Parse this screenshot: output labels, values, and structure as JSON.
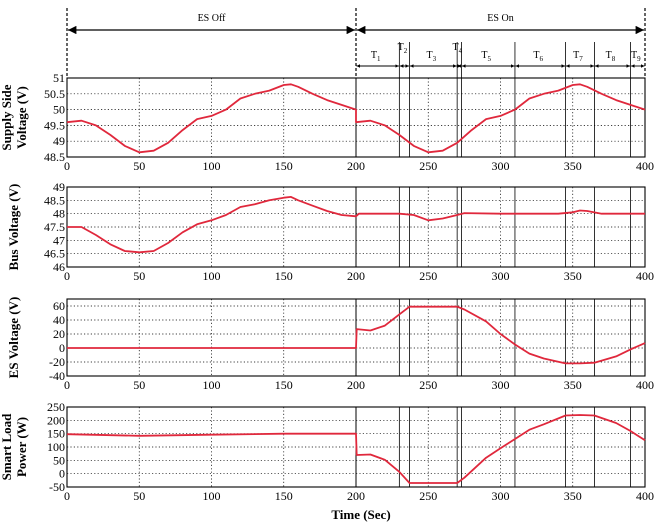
{
  "figure": {
    "xlabel": "Time (Sec)",
    "phase_labels": [
      "ES Off",
      "ES On"
    ],
    "intervals": [
      {
        "base": "T",
        "sub": "1"
      },
      {
        "base": "T",
        "sub": "2"
      },
      {
        "base": "T",
        "sub": "3"
      },
      {
        "base": "T",
        "sub": "4"
      },
      {
        "base": "T",
        "sub": "5"
      },
      {
        "base": "T",
        "sub": "6"
      },
      {
        "base": "T",
        "sub": "7"
      },
      {
        "base": "T",
        "sub": "8"
      },
      {
        "base": "T",
        "sub": "9"
      }
    ],
    "interval_bounds": [
      200,
      230,
      237,
      270,
      273,
      310,
      345,
      365,
      390,
      400
    ],
    "switch_time": 200,
    "line_color": "#e0283c"
  },
  "chart_data": [
    {
      "type": "line",
      "ylabel": [
        "Supply Side",
        "Voltage (V)"
      ],
      "xlim": [
        0,
        400
      ],
      "ylim": [
        48.5,
        51
      ],
      "yticks": [
        "48.5",
        "49",
        "49.5",
        "50",
        "50.5",
        "51"
      ],
      "xticks": [
        "0",
        "50",
        "100",
        "150",
        "200",
        "250",
        "300",
        "350",
        "400"
      ],
      "x": [
        0,
        10,
        20,
        30,
        40,
        50,
        60,
        70,
        80,
        90,
        100,
        110,
        120,
        130,
        140,
        150,
        155,
        160,
        170,
        180,
        190,
        200,
        200,
        210,
        220,
        230,
        240,
        250,
        260,
        270,
        280,
        290,
        300,
        310,
        320,
        330,
        340,
        350,
        355,
        360,
        370,
        380,
        390,
        400
      ],
      "y": [
        49.6,
        49.65,
        49.5,
        49.2,
        48.85,
        48.65,
        48.7,
        48.95,
        49.35,
        49.7,
        49.8,
        50.0,
        50.35,
        50.5,
        50.6,
        50.78,
        50.8,
        50.72,
        50.5,
        50.3,
        50.15,
        50.0,
        49.6,
        49.65,
        49.5,
        49.2,
        48.85,
        48.65,
        48.7,
        48.95,
        49.35,
        49.7,
        49.8,
        50.0,
        50.35,
        50.5,
        50.6,
        50.78,
        50.8,
        50.72,
        50.5,
        50.3,
        50.15,
        50.0
      ]
    },
    {
      "type": "line",
      "ylabel": [
        "Bus Voltage (V)"
      ],
      "xlim": [
        0,
        400
      ],
      "ylim": [
        46,
        49
      ],
      "yticks": [
        "46",
        "46.5",
        "47",
        "47.5",
        "48",
        "48.5",
        "49"
      ],
      "xticks": [
        "0",
        "50",
        "100",
        "150",
        "200",
        "250",
        "300",
        "350",
        "400"
      ],
      "x": [
        0,
        10,
        20,
        30,
        40,
        50,
        60,
        70,
        80,
        90,
        100,
        110,
        120,
        130,
        140,
        150,
        155,
        160,
        170,
        180,
        190,
        200,
        202,
        230,
        240,
        250,
        260,
        270,
        275,
        300,
        340,
        350,
        355,
        360,
        370,
        400
      ],
      "y": [
        47.5,
        47.5,
        47.2,
        46.85,
        46.6,
        46.55,
        46.6,
        46.9,
        47.3,
        47.6,
        47.75,
        47.95,
        48.25,
        48.35,
        48.5,
        48.6,
        48.63,
        48.5,
        48.3,
        48.1,
        47.95,
        47.9,
        48.0,
        48.0,
        47.95,
        47.75,
        47.82,
        47.95,
        48.02,
        48.0,
        48.0,
        48.05,
        48.12,
        48.1,
        48.0,
        48.0
      ]
    },
    {
      "type": "line",
      "ylabel": [
        "ES Voltage (V)"
      ],
      "xlim": [
        0,
        400
      ],
      "ylim": [
        -40,
        70
      ],
      "yticks": [
        "-40",
        "-20",
        "0",
        "20",
        "40",
        "60"
      ],
      "xticks": [
        "0",
        "50",
        "100",
        "150",
        "200",
        "250",
        "300",
        "350",
        "400"
      ],
      "x": [
        0,
        200,
        200.5,
        210,
        220,
        230,
        237,
        250,
        270,
        275,
        290,
        300,
        310,
        320,
        330,
        345,
        355,
        365,
        380,
        390,
        400
      ],
      "y": [
        0,
        0,
        27,
        25,
        32,
        48,
        59,
        59,
        59,
        55,
        38,
        20,
        5,
        -8,
        -15,
        -22,
        -22,
        -21,
        -12,
        -2,
        7
      ]
    },
    {
      "type": "line",
      "ylabel": [
        "Smart Load",
        "Power (W)"
      ],
      "xlim": [
        0,
        400
      ],
      "ylim": [
        -50,
        250
      ],
      "yticks": [
        "-50",
        "0",
        "50",
        "100",
        "150",
        "200",
        "250"
      ],
      "xticks": [
        "0",
        "50",
        "100",
        "150",
        "200",
        "250",
        "300",
        "350",
        "400"
      ],
      "x": [
        0,
        50,
        100,
        150,
        200,
        200.5,
        210,
        220,
        230,
        237,
        250,
        270,
        275,
        290,
        300,
        310,
        320,
        330,
        345,
        355,
        365,
        380,
        390,
        400
      ],
      "y": [
        148,
        142,
        146,
        150,
        150,
        70,
        72,
        52,
        7,
        -35,
        -35,
        -35,
        -15,
        60,
        95,
        130,
        165,
        185,
        218,
        220,
        218,
        190,
        160,
        125
      ]
    }
  ]
}
